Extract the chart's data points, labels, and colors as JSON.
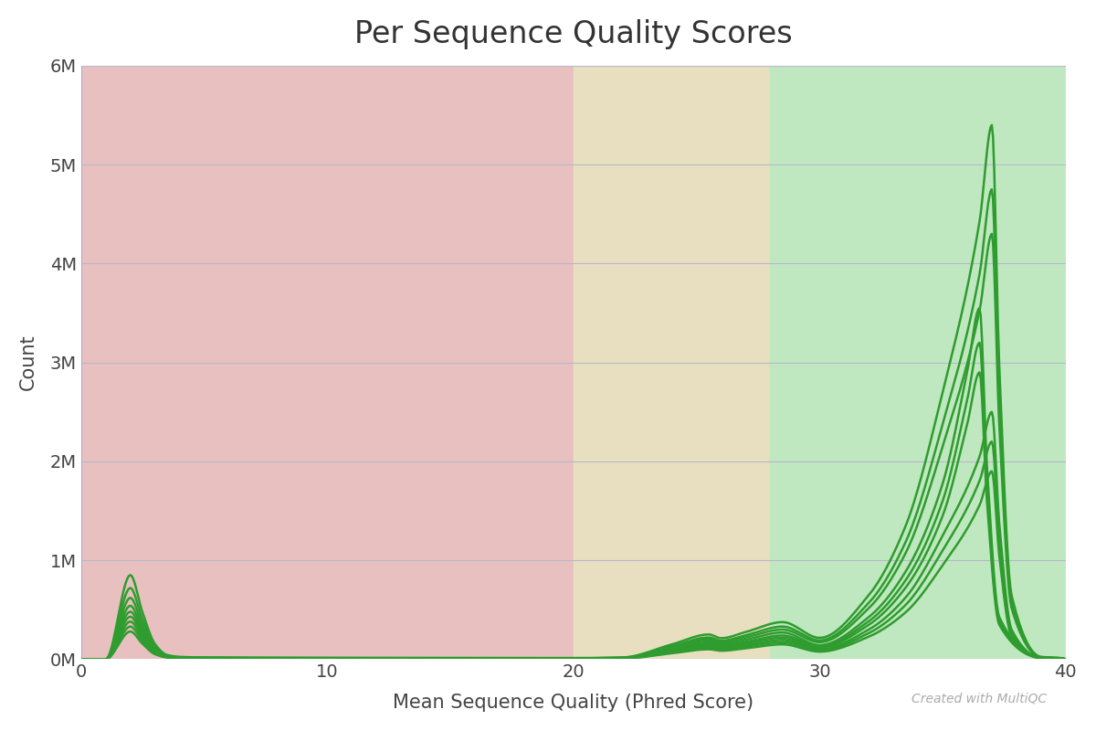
{
  "title": "Per Sequence Quality Scores",
  "xlabel": "Mean Sequence Quality (Phred Score)",
  "ylabel": "Count",
  "xlim": [
    0,
    40
  ],
  "ylim": [
    0,
    6000000
  ],
  "background_color": "#ffffff",
  "region_bad": {
    "x_start": 0,
    "x_end": 20,
    "color": "#e8c0c0"
  },
  "region_warn": {
    "x_start": 20,
    "x_end": 28,
    "color": "#e8dfc0"
  },
  "region_good": {
    "x_start": 28,
    "x_end": 40,
    "color": "#c0e8c0"
  },
  "line_color": "#2e9c2e",
  "line_width": 1.8,
  "yticks": [
    0,
    1000000,
    2000000,
    3000000,
    4000000,
    5000000,
    6000000
  ],
  "ytick_labels": [
    "0M",
    "1M",
    "2M",
    "3M",
    "4M",
    "5M",
    "6M"
  ],
  "xticks": [
    0,
    10,
    20,
    30,
    40
  ],
  "watermark": "Created with MultiQC",
  "series": [
    {
      "peak_x": 37.0,
      "peak_y": 5400000,
      "init_peak_y": 850000,
      "flat_y": 12000,
      "plateau_x": 25.5,
      "plateau_y": 250000,
      "rise_start": 22
    },
    {
      "peak_x": 37.0,
      "peak_y": 4750000,
      "init_peak_y": 720000,
      "flat_y": 10000,
      "plateau_x": 25.5,
      "plateau_y": 220000,
      "rise_start": 22
    },
    {
      "peak_x": 37.0,
      "peak_y": 4300000,
      "init_peak_y": 620000,
      "flat_y": 9000,
      "plateau_x": 25.5,
      "plateau_y": 200000,
      "rise_start": 22
    },
    {
      "peak_x": 36.5,
      "peak_y": 3550000,
      "init_peak_y": 540000,
      "flat_y": 8000,
      "plateau_x": 25.5,
      "plateau_y": 180000,
      "rise_start": 22
    },
    {
      "peak_x": 36.5,
      "peak_y": 3200000,
      "init_peak_y": 480000,
      "flat_y": 7000,
      "plateau_x": 25.5,
      "plateau_y": 160000,
      "rise_start": 22
    },
    {
      "peak_x": 36.5,
      "peak_y": 2900000,
      "init_peak_y": 430000,
      "flat_y": 6500,
      "plateau_x": 25.5,
      "plateau_y": 145000,
      "rise_start": 22
    },
    {
      "peak_x": 37.0,
      "peak_y": 2500000,
      "init_peak_y": 380000,
      "flat_y": 6000,
      "plateau_x": 25.5,
      "plateau_y": 130000,
      "rise_start": 22
    },
    {
      "peak_x": 37.0,
      "peak_y": 2200000,
      "init_peak_y": 330000,
      "flat_y": 5500,
      "plateau_x": 25.5,
      "plateau_y": 115000,
      "rise_start": 22
    },
    {
      "peak_x": 37.0,
      "peak_y": 1900000,
      "init_peak_y": 280000,
      "flat_y": 5000,
      "plateau_x": 25.5,
      "plateau_y": 100000,
      "rise_start": 22
    }
  ]
}
